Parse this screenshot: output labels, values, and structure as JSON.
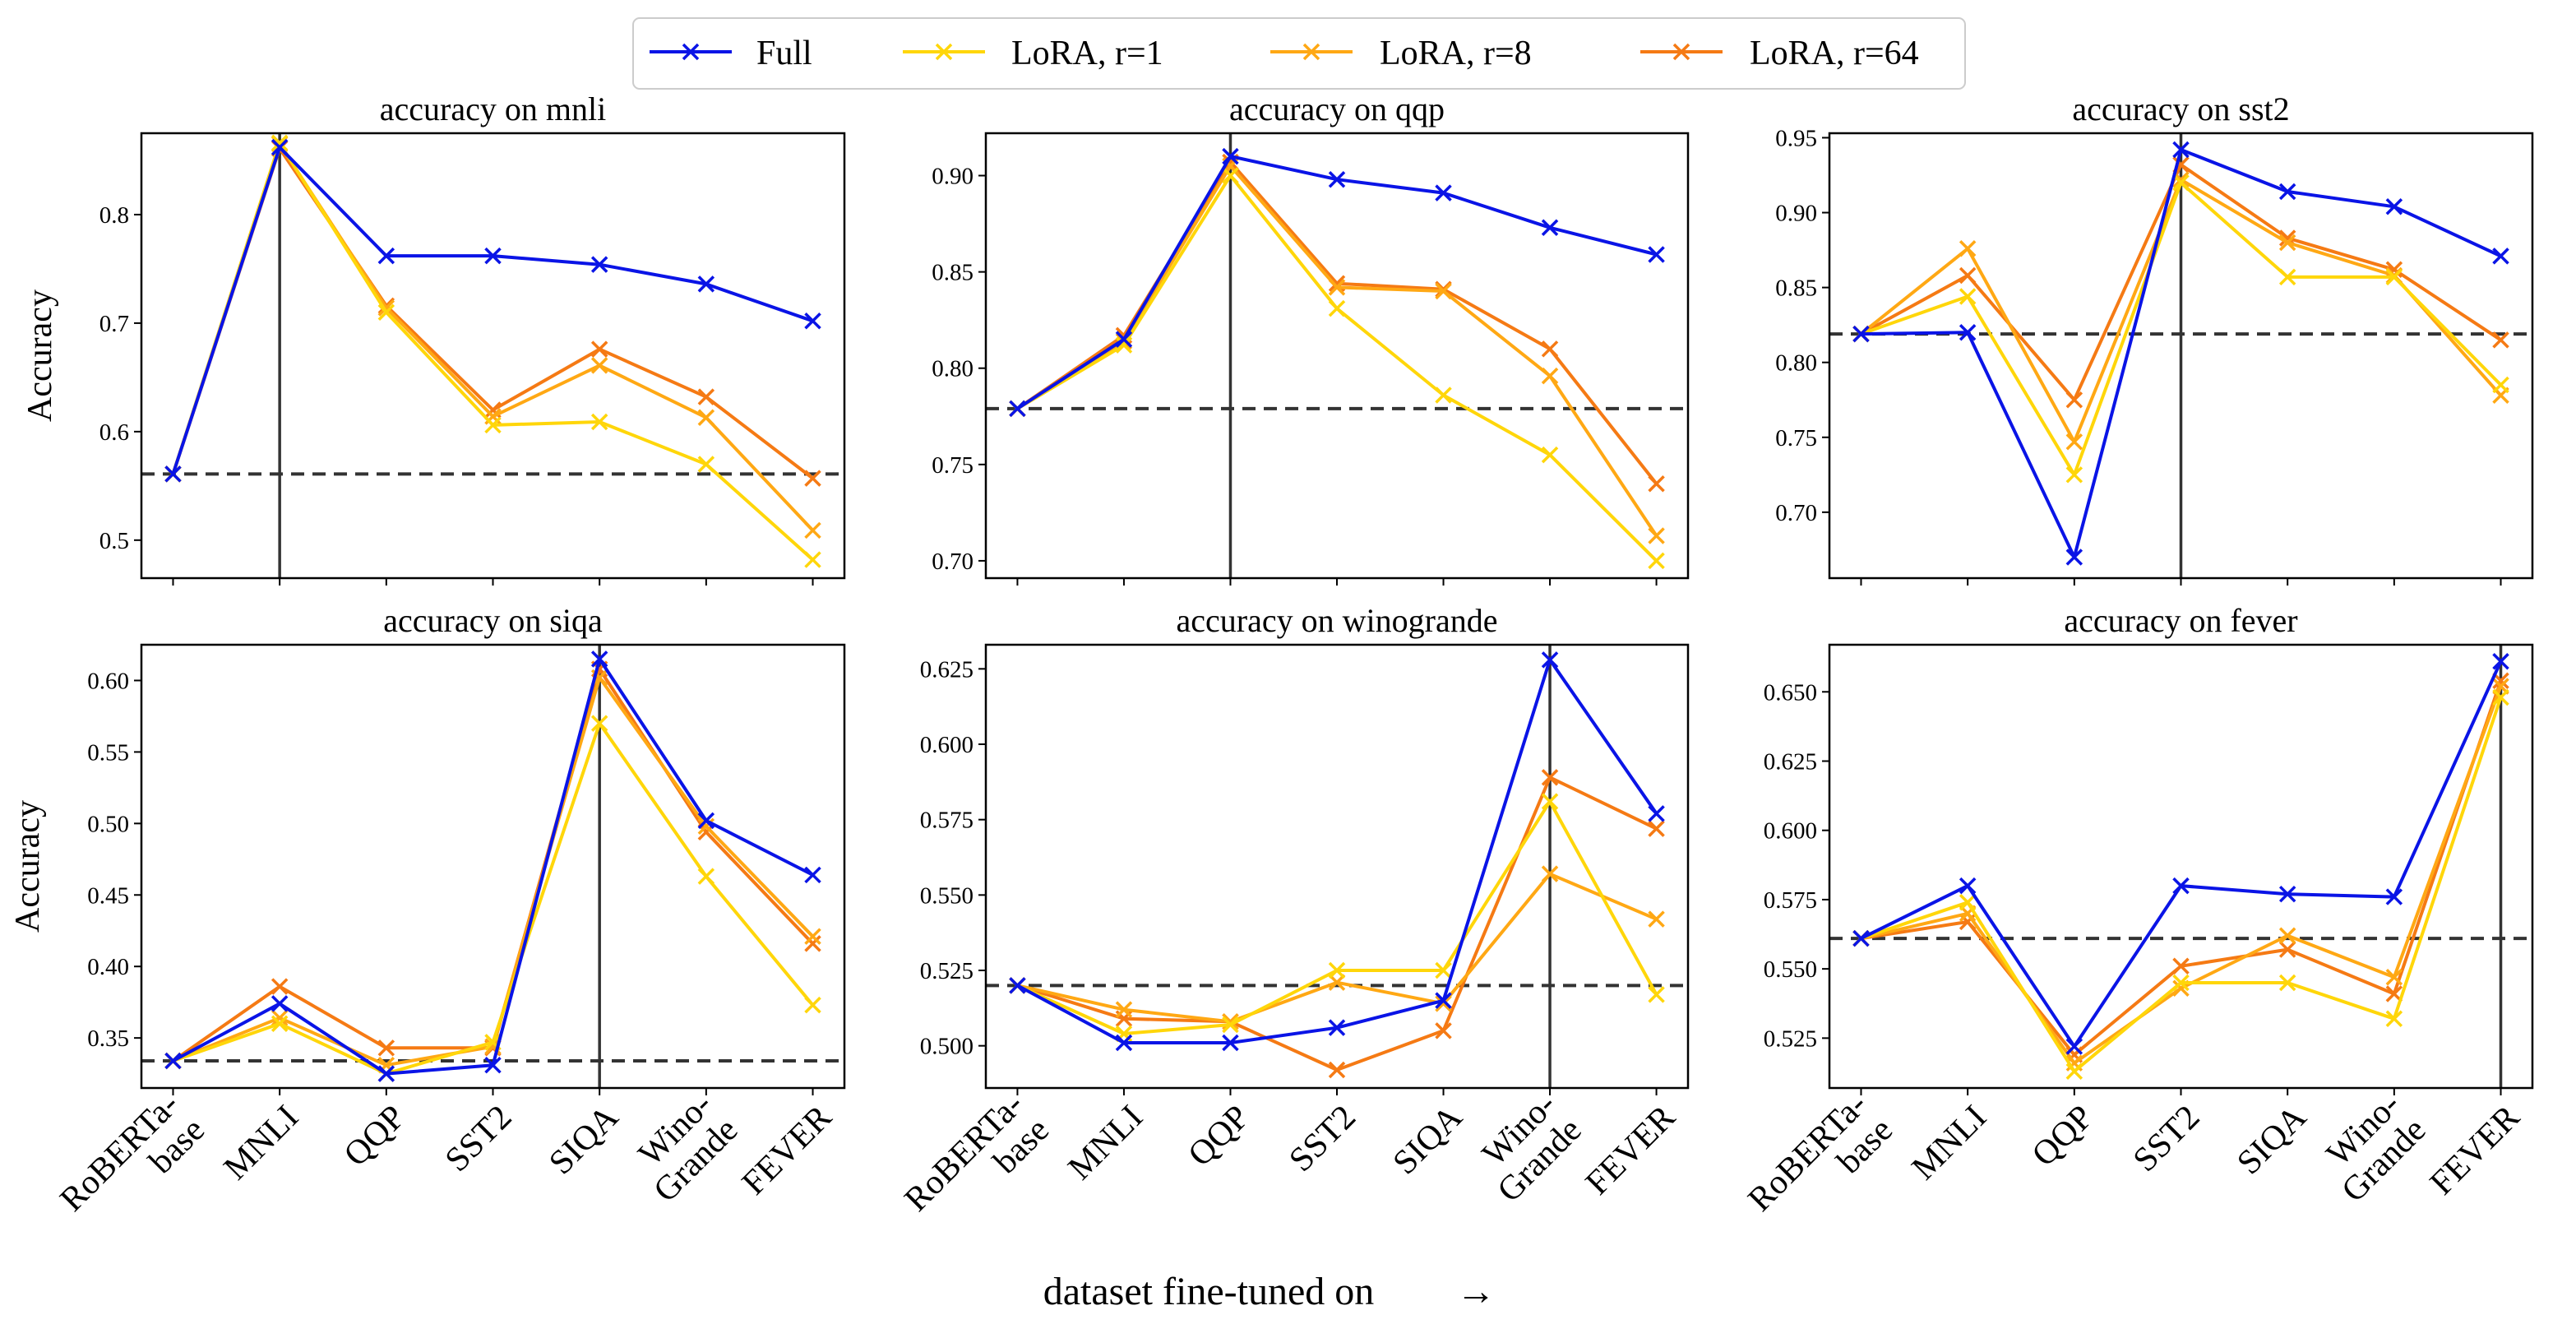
{
  "figure": {
    "xlabel": "dataset fine-tuned on",
    "arrow": "→"
  },
  "legend": {
    "entries": [
      {
        "name": "Full",
        "color": "#0a14e6"
      },
      {
        "name": "LoRA, r=1",
        "color": "#ffd60a"
      },
      {
        "name": "LoRA, r=8",
        "color": "#ffa814"
      },
      {
        "name": "LoRA, r=64",
        "color": "#f57a14"
      }
    ]
  },
  "chart_data": [
    {
      "type": "line",
      "title": "accuracy on mnli",
      "ylabel": "Accuracy",
      "categories": [
        "RoBERTa-\nbase",
        "MNLI",
        "QQP",
        "SST2",
        "SIQA",
        "Wino-\nGrande",
        "FEVER"
      ],
      "ylim": [
        0.465,
        0.875
      ],
      "yticks": [
        0.5,
        0.6,
        0.7,
        0.8
      ],
      "ytick_labels": [
        "0.5",
        "0.6",
        "0.7",
        "0.8"
      ],
      "show_xtick_labels": false,
      "baseline": 0.561,
      "vline_index": 1,
      "series": [
        {
          "name": "Full",
          "values": [
            0.561,
            0.862,
            0.762,
            0.762,
            0.754,
            0.736,
            0.702
          ]
        },
        {
          "name": "LoRA, r=1",
          "values": [
            0.561,
            0.866,
            0.71,
            0.606,
            0.609,
            0.57,
            0.482
          ]
        },
        {
          "name": "LoRA, r=8",
          "values": [
            0.561,
            0.865,
            0.714,
            0.614,
            0.661,
            0.613,
            0.509
          ]
        },
        {
          "name": "LoRA, r=64",
          "values": [
            0.561,
            0.861,
            0.716,
            0.62,
            0.676,
            0.632,
            0.557
          ]
        }
      ]
    },
    {
      "type": "line",
      "title": "accuracy on qqp",
      "ylabel": "",
      "categories": [
        "RoBERTa-\nbase",
        "MNLI",
        "QQP",
        "SST2",
        "SIQA",
        "Wino-\nGrande",
        "FEVER"
      ],
      "ylim": [
        0.691,
        0.922
      ],
      "yticks": [
        0.7,
        0.75,
        0.8,
        0.85,
        0.9
      ],
      "ytick_labels": [
        "0.70",
        "0.75",
        "0.80",
        "0.85",
        "0.90"
      ],
      "show_xtick_labels": false,
      "baseline": 0.779,
      "vline_index": 2,
      "series": [
        {
          "name": "Full",
          "values": [
            0.779,
            0.815,
            0.91,
            0.898,
            0.891,
            0.873,
            0.859
          ]
        },
        {
          "name": "LoRA, r=1",
          "values": [
            0.779,
            0.812,
            0.9,
            0.831,
            0.786,
            0.755,
            0.7
          ]
        },
        {
          "name": "LoRA, r=8",
          "values": [
            0.779,
            0.814,
            0.905,
            0.842,
            0.84,
            0.796,
            0.713
          ]
        },
        {
          "name": "LoRA, r=64",
          "values": [
            0.779,
            0.817,
            0.907,
            0.844,
            0.841,
            0.81,
            0.74
          ]
        }
      ]
    },
    {
      "type": "line",
      "title": "accuracy on sst2",
      "ylabel": "",
      "categories": [
        "RoBERTa-\nbase",
        "MNLI",
        "QQP",
        "SST2",
        "SIQA",
        "Wino-\nGrande",
        "FEVER"
      ],
      "ylim": [
        0.656,
        0.953
      ],
      "yticks": [
        0.7,
        0.75,
        0.8,
        0.85,
        0.9,
        0.95
      ],
      "ytick_labels": [
        "0.70",
        "0.75",
        "0.80",
        "0.85",
        "0.90",
        "0.95"
      ],
      "show_xtick_labels": false,
      "baseline": 0.819,
      "vline_index": 3,
      "series": [
        {
          "name": "Full",
          "values": [
            0.819,
            0.82,
            0.67,
            0.942,
            0.914,
            0.904,
            0.871
          ]
        },
        {
          "name": "LoRA, r=1",
          "values": [
            0.819,
            0.844,
            0.725,
            0.92,
            0.857,
            0.857,
            0.785
          ]
        },
        {
          "name": "LoRA, r=8",
          "values": [
            0.819,
            0.876,
            0.747,
            0.922,
            0.88,
            0.858,
            0.778
          ]
        },
        {
          "name": "LoRA, r=64",
          "values": [
            0.819,
            0.858,
            0.775,
            0.932,
            0.883,
            0.862,
            0.815
          ]
        }
      ]
    },
    {
      "type": "line",
      "title": "accuracy on siqa",
      "ylabel": "Accuracy",
      "categories": [
        "RoBERTa-\nbase",
        "MNLI",
        "QQP",
        "SST2",
        "SIQA",
        "Wino-\nGrande",
        "FEVER"
      ],
      "ylim": [
        0.315,
        0.625
      ],
      "yticks": [
        0.35,
        0.4,
        0.45,
        0.5,
        0.55,
        0.6
      ],
      "ytick_labels": [
        "0.35",
        "0.40",
        "0.45",
        "0.50",
        "0.55",
        "0.60"
      ],
      "show_xtick_labels": true,
      "baseline": 0.334,
      "vline_index": 4,
      "series": [
        {
          "name": "Full",
          "values": [
            0.334,
            0.374,
            0.325,
            0.331,
            0.615,
            0.502,
            0.464
          ]
        },
        {
          "name": "LoRA, r=1",
          "values": [
            0.334,
            0.36,
            0.325,
            0.347,
            0.57,
            0.463,
            0.373
          ]
        },
        {
          "name": "LoRA, r=8",
          "values": [
            0.334,
            0.364,
            0.331,
            0.344,
            0.602,
            0.498,
            0.421
          ]
        },
        {
          "name": "LoRA, r=64",
          "values": [
            0.334,
            0.386,
            0.343,
            0.343,
            0.608,
            0.494,
            0.416
          ]
        }
      ]
    },
    {
      "type": "line",
      "title": "accuracy on winogrande",
      "ylabel": "",
      "categories": [
        "RoBERTa-\nbase",
        "MNLI",
        "QQP",
        "SST2",
        "SIQA",
        "Wino-\nGrande",
        "FEVER"
      ],
      "ylim": [
        0.486,
        0.633
      ],
      "yticks": [
        0.5,
        0.525,
        0.55,
        0.575,
        0.6,
        0.625
      ],
      "ytick_labels": [
        "0.500",
        "0.525",
        "0.550",
        "0.575",
        "0.600",
        "0.625"
      ],
      "show_xtick_labels": true,
      "baseline": 0.52,
      "vline_index": 5,
      "series": [
        {
          "name": "Full",
          "values": [
            0.52,
            0.501,
            0.501,
            0.506,
            0.515,
            0.628,
            0.577
          ]
        },
        {
          "name": "LoRA, r=1",
          "values": [
            0.52,
            0.504,
            0.507,
            0.525,
            0.525,
            0.581,
            0.517
          ]
        },
        {
          "name": "LoRA, r=8",
          "values": [
            0.52,
            0.512,
            0.508,
            0.521,
            0.514,
            0.557,
            0.542
          ]
        },
        {
          "name": "LoRA, r=64",
          "values": [
            0.52,
            0.509,
            0.508,
            0.492,
            0.505,
            0.589,
            0.572
          ]
        }
      ]
    },
    {
      "type": "line",
      "title": "accuracy on fever",
      "ylabel": "",
      "categories": [
        "RoBERTa-\nbase",
        "MNLI",
        "QQP",
        "SST2",
        "SIQA",
        "Wino-\nGrande",
        "FEVER"
      ],
      "ylim": [
        0.507,
        0.667
      ],
      "yticks": [
        0.525,
        0.55,
        0.575,
        0.6,
        0.625,
        0.65
      ],
      "ytick_labels": [
        "0.525",
        "0.550",
        "0.575",
        "0.600",
        "0.625",
        "0.650"
      ],
      "show_xtick_labels": true,
      "baseline": 0.561,
      "vline_index": 6,
      "series": [
        {
          "name": "Full",
          "values": [
            0.561,
            0.58,
            0.522,
            0.58,
            0.577,
            0.576,
            0.661
          ]
        },
        {
          "name": "LoRA, r=1",
          "values": [
            0.561,
            0.574,
            0.513,
            0.545,
            0.545,
            0.532,
            0.648
          ]
        },
        {
          "name": "LoRA, r=8",
          "values": [
            0.561,
            0.57,
            0.516,
            0.543,
            0.562,
            0.547,
            0.652
          ]
        },
        {
          "name": "LoRA, r=64",
          "values": [
            0.561,
            0.567,
            0.519,
            0.551,
            0.557,
            0.541,
            0.654
          ]
        }
      ]
    }
  ]
}
